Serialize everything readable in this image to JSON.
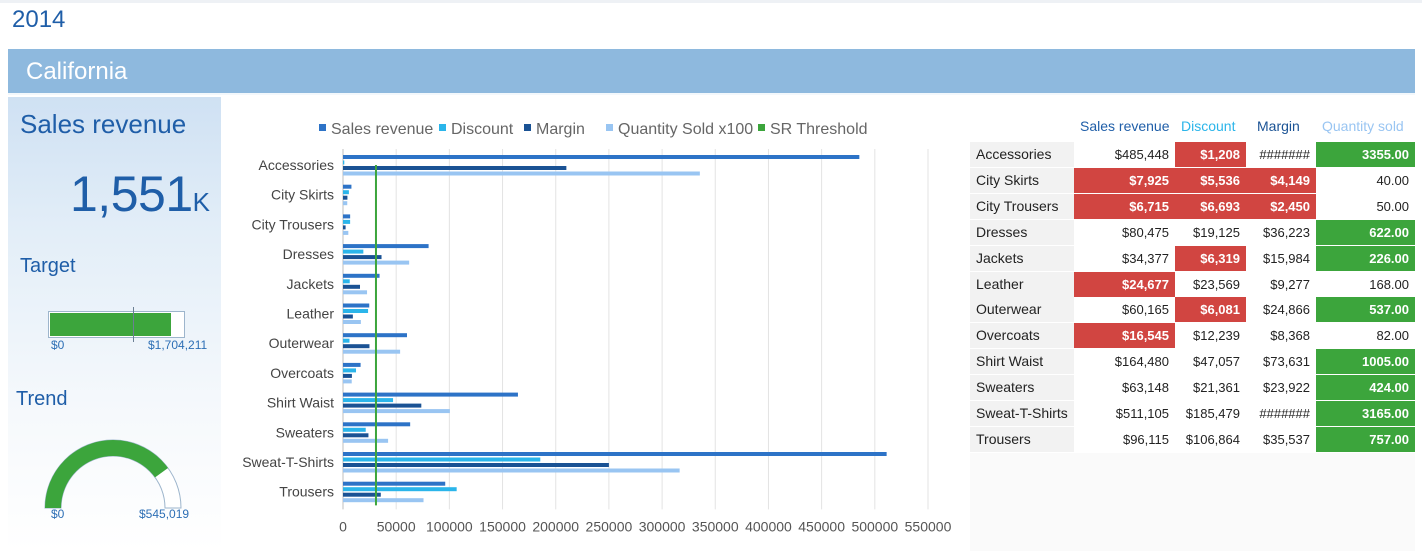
{
  "page": {
    "year": "2014",
    "region": "California"
  },
  "kpi": {
    "title": "Sales revenue",
    "value": "1,551",
    "unit": "K",
    "target": {
      "title": "Target",
      "min_label": "$0",
      "max_label": "$1,704,211",
      "value": 1551000,
      "max": 1704211
    },
    "trend": {
      "title": "Trend",
      "min_label": "$0",
      "max_label": "$545,019",
      "value_fraction": 0.8
    },
    "colors": {
      "accent": "#1f5ea8",
      "good": "#3ca53c"
    }
  },
  "chart_data": {
    "type": "bar",
    "orientation": "horizontal",
    "categories": [
      "Accessories",
      "City Skirts",
      "City Trousers",
      "Dresses",
      "Jackets",
      "Leather",
      "Outerwear",
      "Overcoats",
      "Shirt Waist",
      "Sweaters",
      "Sweat-T-Shirts",
      "Trousers"
    ],
    "series": [
      {
        "name": "Sales revenue",
        "color": "#2d73c7",
        "values": [
          485448,
          7925,
          6715,
          80475,
          34377,
          24677,
          60165,
          16545,
          164480,
          63148,
          511105,
          96115
        ]
      },
      {
        "name": "Discount",
        "color": "#2bb5ea",
        "values": [
          1208,
          5536,
          6693,
          19125,
          6319,
          23569,
          6081,
          12239,
          47057,
          21361,
          185479,
          106864
        ]
      },
      {
        "name": "Margin",
        "color": "#1a5294",
        "values": [
          210000,
          4149,
          2450,
          36223,
          15984,
          9277,
          24866,
          8368,
          73631,
          23922,
          250000,
          35537
        ]
      },
      {
        "name": "Quantity Sold x100",
        "color": "#99c5f2",
        "values": [
          335500,
          4000,
          5000,
          62200,
          22600,
          16800,
          53700,
          8200,
          100500,
          42400,
          316500,
          75700
        ]
      }
    ],
    "threshold": {
      "name": "SR Threshold",
      "color": "#3ca53c",
      "value": 31000
    },
    "xlim": [
      0,
      550000
    ],
    "xticks": [
      "0",
      "50000",
      "100000",
      "150000",
      "200000",
      "250000",
      "300000",
      "350000",
      "400000",
      "450000",
      "500000",
      "550000"
    ],
    "legend": "top",
    "grid": true
  },
  "table": {
    "headers": [
      {
        "label": "Sales revenue",
        "color": "#1f5ea8"
      },
      {
        "label": "Discount",
        "color": "#2bb5ea"
      },
      {
        "label": "Margin",
        "color": "#1a5294"
      },
      {
        "label": "Quantity sold",
        "color": "#99c5f2"
      }
    ],
    "rows": [
      {
        "name": "Accessories",
        "cells": [
          [
            "$485,448",
            ""
          ],
          [
            "$1,208",
            "bad"
          ],
          [
            "#######",
            ""
          ],
          [
            "3355.00",
            "good"
          ]
        ]
      },
      {
        "name": "City Skirts",
        "cells": [
          [
            "$7,925",
            "bad"
          ],
          [
            "$5,536",
            "bad"
          ],
          [
            "$4,149",
            "bad"
          ],
          [
            "40.00",
            ""
          ]
        ]
      },
      {
        "name": "City Trousers",
        "cells": [
          [
            "$6,715",
            "bad"
          ],
          [
            "$6,693",
            "bad"
          ],
          [
            "$2,450",
            "bad"
          ],
          [
            "50.00",
            ""
          ]
        ]
      },
      {
        "name": "Dresses",
        "cells": [
          [
            "$80,475",
            ""
          ],
          [
            "$19,125",
            ""
          ],
          [
            "$36,223",
            ""
          ],
          [
            "622.00",
            "good"
          ]
        ]
      },
      {
        "name": "Jackets",
        "cells": [
          [
            "$34,377",
            ""
          ],
          [
            "$6,319",
            "bad"
          ],
          [
            "$15,984",
            ""
          ],
          [
            "226.00",
            "good"
          ]
        ]
      },
      {
        "name": "Leather",
        "cells": [
          [
            "$24,677",
            "bad"
          ],
          [
            "$23,569",
            ""
          ],
          [
            "$9,277",
            ""
          ],
          [
            "168.00",
            ""
          ]
        ]
      },
      {
        "name": "Outerwear",
        "cells": [
          [
            "$60,165",
            ""
          ],
          [
            "$6,081",
            "bad"
          ],
          [
            "$24,866",
            ""
          ],
          [
            "537.00",
            "good"
          ]
        ]
      },
      {
        "name": "Overcoats",
        "cells": [
          [
            "$16,545",
            "bad"
          ],
          [
            "$12,239",
            ""
          ],
          [
            "$8,368",
            ""
          ],
          [
            "82.00",
            ""
          ]
        ]
      },
      {
        "name": "Shirt Waist",
        "cells": [
          [
            "$164,480",
            ""
          ],
          [
            "$47,057",
            ""
          ],
          [
            "$73,631",
            ""
          ],
          [
            "1005.00",
            "good"
          ]
        ]
      },
      {
        "name": "Sweaters",
        "cells": [
          [
            "$63,148",
            ""
          ],
          [
            "$21,361",
            ""
          ],
          [
            "$23,922",
            ""
          ],
          [
            "424.00",
            "good"
          ]
        ]
      },
      {
        "name": "Sweat-T-Shirts",
        "cells": [
          [
            "$511,105",
            ""
          ],
          [
            "$185,479",
            ""
          ],
          [
            "#######",
            ""
          ],
          [
            "3165.00",
            "good"
          ]
        ]
      },
      {
        "name": "Trousers",
        "cells": [
          [
            "$96,115",
            ""
          ],
          [
            "$106,864",
            ""
          ],
          [
            "$35,537",
            ""
          ],
          [
            "757.00",
            "good"
          ]
        ]
      }
    ]
  }
}
